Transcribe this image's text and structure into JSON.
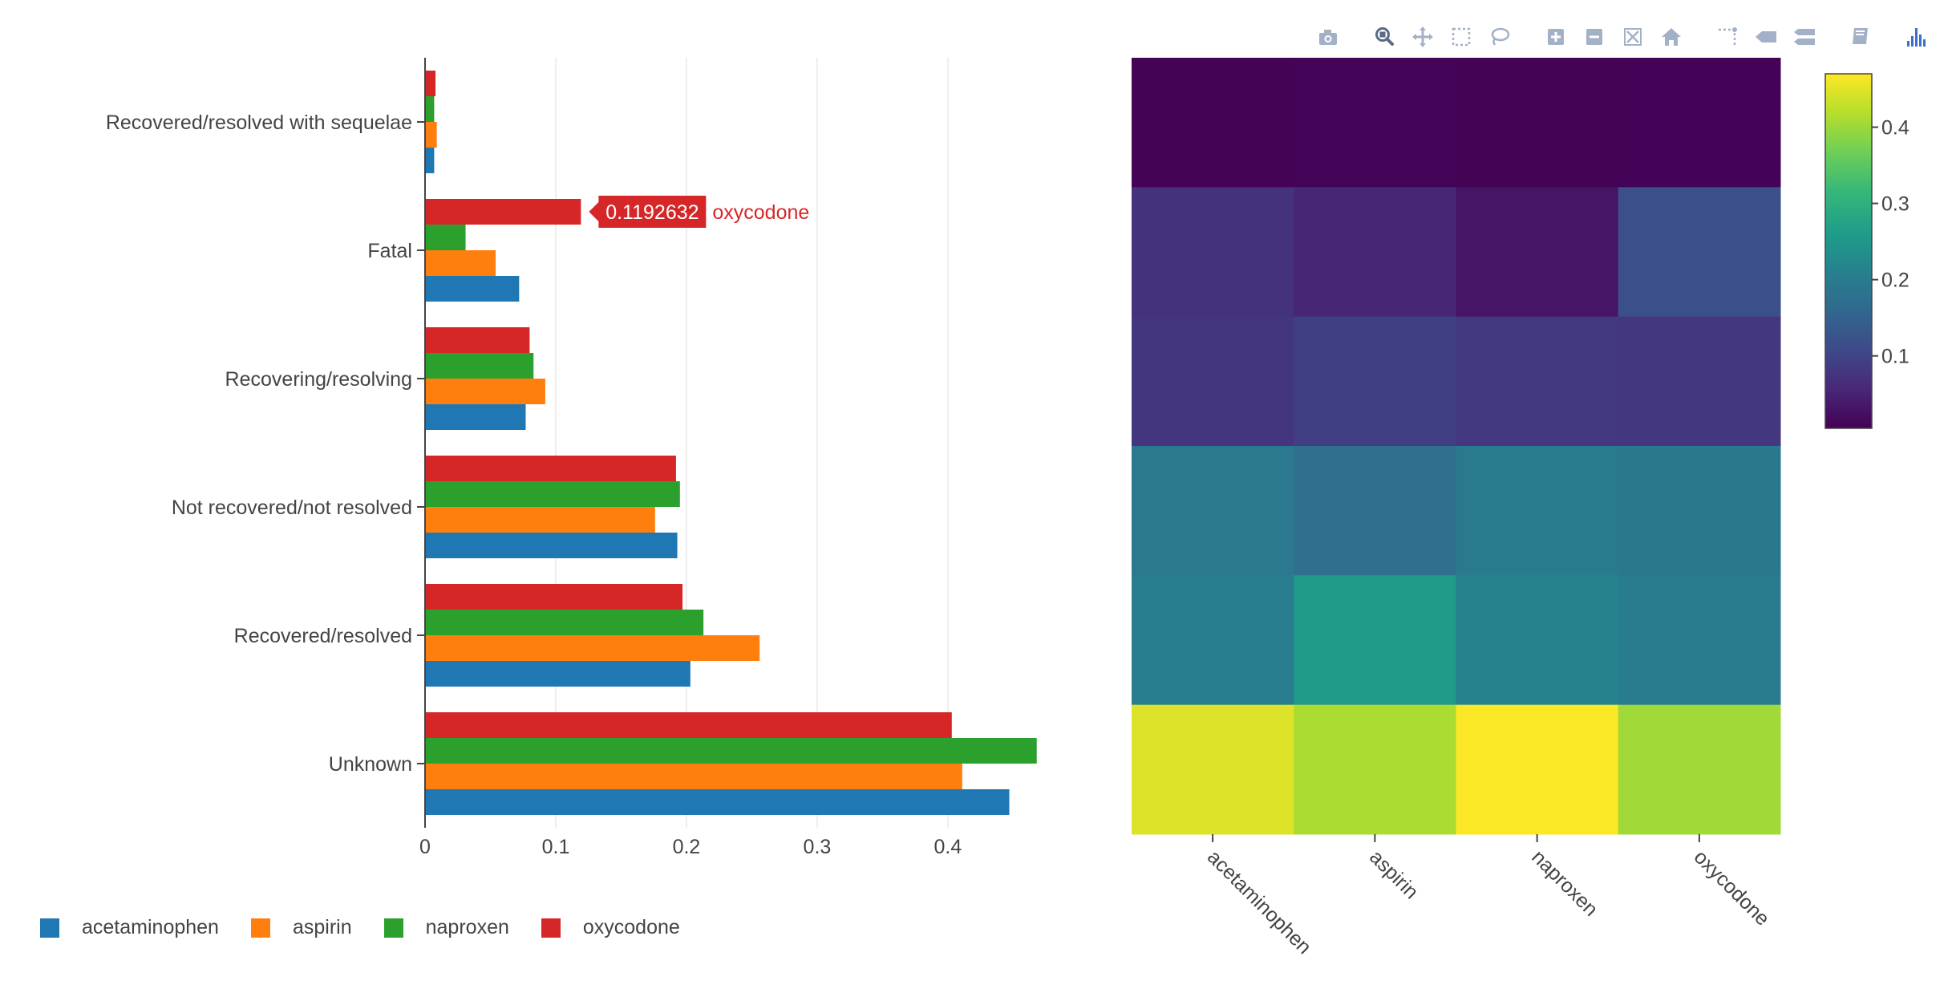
{
  "toolbar": {
    "buttons": [
      {
        "id": "download-plot",
        "icon": "camera-icon"
      },
      {
        "id": "zoom",
        "icon": "zoom-icon",
        "active": true
      },
      {
        "id": "pan",
        "icon": "pan-icon"
      },
      {
        "id": "box-select",
        "icon": "box-select-icon"
      },
      {
        "id": "lasso-select",
        "icon": "lasso-icon"
      },
      {
        "id": "zoom-in",
        "icon": "zoom-in-icon"
      },
      {
        "id": "zoom-out",
        "icon": "zoom-out-icon"
      },
      {
        "id": "autoscale",
        "icon": "autoscale-icon"
      },
      {
        "id": "reset-axes",
        "icon": "home-icon"
      },
      {
        "id": "spike-lines",
        "icon": "spikelines-icon"
      },
      {
        "id": "hover-closest",
        "icon": "hover-closest-icon"
      },
      {
        "id": "hover-compare",
        "icon": "hover-compare-icon"
      },
      {
        "id": "edit-chart",
        "icon": "book-icon"
      },
      {
        "id": "plotly-logo",
        "icon": "plotly-logo-icon"
      }
    ],
    "icon_color": "#a3b1c8",
    "active_color": "#5a6b86",
    "logo_color": "#3b6fd0"
  },
  "chart_data": [
    {
      "type": "bar",
      "orientation": "horizontal",
      "categories": [
        "Unknown",
        "Recovered/resolved",
        "Not recovered/not resolved",
        "Recovering/resolving",
        "Fatal",
        "Recovered/resolved with sequelae"
      ],
      "series": [
        {
          "name": "acetaminophen",
          "color": "#1f77b4",
          "values": [
            0.447,
            0.203,
            0.193,
            0.077,
            0.072,
            0.007
          ]
        },
        {
          "name": "aspirin",
          "color": "#ff7f0e",
          "values": [
            0.411,
            0.256,
            0.176,
            0.092,
            0.054,
            0.009
          ]
        },
        {
          "name": "naproxen",
          "color": "#2ca02c",
          "values": [
            0.468,
            0.213,
            0.195,
            0.083,
            0.031,
            0.007
          ]
        },
        {
          "name": "oxycodone",
          "color": "#d62728",
          "values": [
            0.403,
            0.197,
            0.192,
            0.08,
            0.1192632,
            0.008
          ]
        }
      ],
      "xlim": [
        0,
        0.47
      ],
      "xticks": [
        0,
        0.1,
        0.2,
        0.3,
        0.4
      ],
      "xtick_labels": [
        "0",
        "0.1",
        "0.2",
        "0.3",
        "0.4"
      ],
      "grid": true,
      "legend_position": "bottom-left",
      "hover_label": {
        "series": "oxycodone",
        "category": "Fatal",
        "value_text": "0.1192632",
        "name_text": "oxycodone"
      }
    },
    {
      "type": "heatmap",
      "x_categories": [
        "acetaminophen",
        "aspirin",
        "naproxen",
        "oxycodone"
      ],
      "y_categories": [
        "Recovered/resolved with sequelae",
        "Fatal",
        "Recovering/resolving",
        "Not recovered/not resolved",
        "Recovered/resolved",
        "Unknown"
      ],
      "z": [
        [
          0.007,
          0.009,
          0.007,
          0.008
        ],
        [
          0.072,
          0.054,
          0.031,
          0.1192632
        ],
        [
          0.077,
          0.092,
          0.083,
          0.08
        ],
        [
          0.193,
          0.176,
          0.195,
          0.192
        ],
        [
          0.203,
          0.256,
          0.213,
          0.197
        ],
        [
          0.447,
          0.411,
          0.468,
          0.403
        ]
      ],
      "zlim": [
        0.005,
        0.47
      ],
      "colorscale": "viridis",
      "colorbar_ticks": [
        0.1,
        0.2,
        0.3,
        0.4
      ],
      "colorbar_tick_labels": [
        "0.1",
        "0.2",
        "0.3",
        "0.4"
      ],
      "x_tick_angle": 45
    }
  ]
}
